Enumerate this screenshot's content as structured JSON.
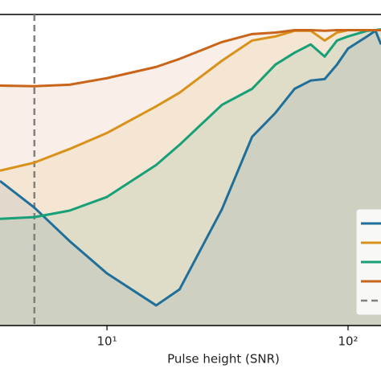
{
  "chart_data": {
    "type": "line",
    "x_label": "Pulse height (SNR)",
    "x_log": true,
    "xlim": [
      3.6,
      137
    ],
    "xticks": [
      {
        "value": 10,
        "label": "10¹"
      },
      {
        "value": 100,
        "label": "10²"
      }
    ],
    "ylim": [
      0,
      1.05
    ],
    "fill_under": true,
    "vline": {
      "value": 5,
      "color": "#808080"
    },
    "legend": "lower right",
    "x": [
      3.6,
      5,
      7,
      10,
      16,
      20,
      30,
      40,
      50,
      60,
      70,
      80,
      90,
      100,
      120,
      130,
      137
    ],
    "series": [
      {
        "color": "#1f6f9a",
        "values": [
          0.488,
          0.398,
          0.285,
          0.176,
          0.068,
          0.122,
          0.393,
          0.637,
          0.718,
          0.799,
          0.827,
          0.832,
          0.881,
          0.935,
          0.976,
          0.995,
          0.949
        ]
      },
      {
        "color": "#d8921a",
        "values": [
          0.523,
          0.55,
          0.596,
          0.65,
          0.74,
          0.786,
          0.894,
          0.962,
          0.976,
          0.995,
          0.995,
          0.962,
          0.989,
          0.997,
          0.997,
          0.997,
          0.997
        ]
      },
      {
        "color": "#17a077",
        "values": [
          0.36,
          0.366,
          0.388,
          0.434,
          0.542,
          0.61,
          0.745,
          0.799,
          0.881,
          0.921,
          0.949,
          0.908,
          0.962,
          0.976,
          0.995,
          0.997,
          1.0
        ]
      },
      {
        "color": "#c9651a",
        "values": [
          0.81,
          0.808,
          0.813,
          0.835,
          0.873,
          0.9,
          0.957,
          0.984,
          0.989,
          0.997,
          0.997,
          0.995,
          0.997,
          0.997,
          0.997,
          0.997,
          0.997
        ]
      }
    ]
  }
}
